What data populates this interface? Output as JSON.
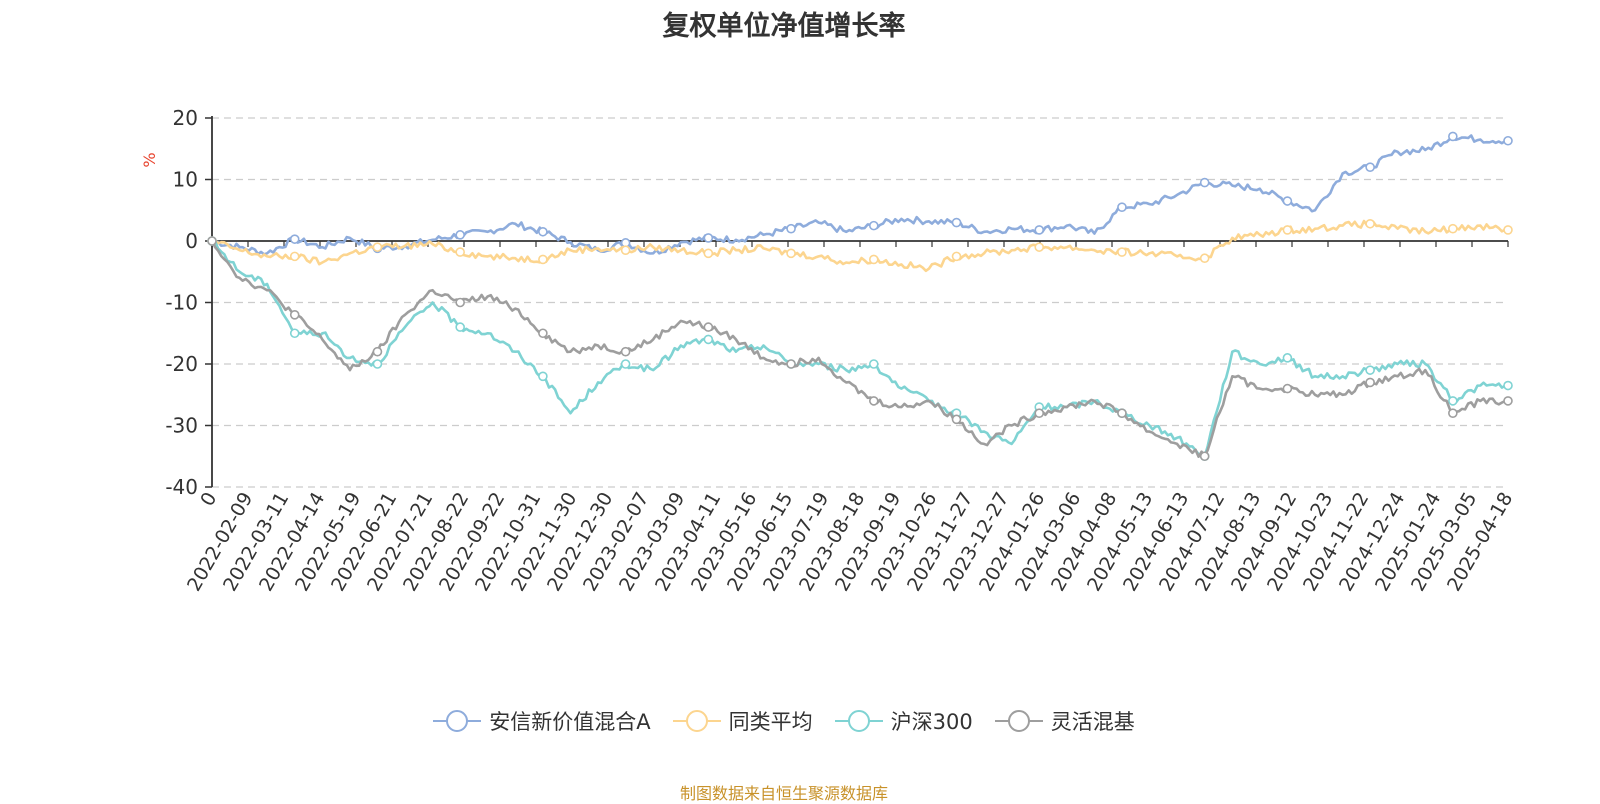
{
  "chart_data": {
    "type": "line",
    "title": "复权单位净值增长率",
    "ylabel": "%",
    "ylim": [
      -40,
      20
    ],
    "yticks": [
      -40,
      -30,
      -20,
      -10,
      0,
      10,
      20
    ],
    "grid": true,
    "legend_position": "bottom-center",
    "x_tick_labels": [
      "0",
      "2022-02-09",
      "2022-03-11",
      "2022-04-14",
      "2022-05-19",
      "2022-06-21",
      "2022-07-21",
      "2022-08-22",
      "2022-09-22",
      "2022-10-31",
      "2022-11-30",
      "2022-12-30",
      "2023-02-07",
      "2023-03-09",
      "2023-04-11",
      "2023-05-16",
      "2023-06-15",
      "2023-07-19",
      "2023-08-18",
      "2023-09-19",
      "2023-10-26",
      "2023-11-27",
      "2023-12-27",
      "2024-01-26",
      "2024-03-06",
      "2024-04-08",
      "2024-05-13",
      "2024-06-13",
      "2024-07-12",
      "2024-08-13",
      "2024-09-12",
      "2024-10-23",
      "2024-11-22",
      "2024-12-24",
      "2025-01-24",
      "2025-03-05",
      "2025-04-18"
    ],
    "series": [
      {
        "name": "安信新价值混合A",
        "color": "#8eacdc",
        "values": [
          0,
          -1,
          -2,
          0.3,
          -1,
          0.5,
          -1.2,
          -0.8,
          0.2,
          1,
          1.5,
          2.8,
          1.5,
          -0.2,
          -1.5,
          -0.3,
          -2,
          -0.2,
          0.5,
          0.2,
          1,
          2,
          3,
          1.5,
          2.5,
          3.6,
          3.2,
          3,
          1.5,
          2,
          1.8,
          2.5,
          1.2,
          5.5,
          6,
          7.5,
          9.5,
          9,
          8.5,
          6.5,
          5,
          11,
          12,
          14.5,
          14.8,
          17,
          16.5,
          16.3
        ]
      },
      {
        "name": "同类平均",
        "color": "#fcd58f",
        "values": [
          0,
          -1.5,
          -2.5,
          -2.5,
          -3.5,
          -2,
          -1,
          -0.8,
          -0.5,
          -1.8,
          -2.5,
          -2.8,
          -3,
          -1.5,
          -1.2,
          -1.5,
          -1,
          -1.5,
          -2,
          -1.5,
          -1.2,
          -2,
          -2.5,
          -3.5,
          -3,
          -3.8,
          -4.5,
          -2.5,
          -2,
          -1.5,
          -1,
          -1,
          -1.5,
          -1.8,
          -2,
          -2.5,
          -2.8,
          0.5,
          1,
          1.8,
          2,
          2.5,
          2.8,
          2,
          1.5,
          2,
          2.5,
          1.8
        ]
      },
      {
        "name": "沪深300",
        "color": "#7fd3d3",
        "values": [
          0,
          -5,
          -7,
          -15,
          -15,
          -19,
          -20,
          -14,
          -10,
          -14,
          -15,
          -18,
          -22,
          -28,
          -23,
          -20,
          -21,
          -17,
          -16,
          -18,
          -17,
          -20,
          -20,
          -21,
          -20,
          -24,
          -26,
          -28,
          -31,
          -33,
          -27,
          -27,
          -26,
          -28,
          -30,
          -32,
          -35,
          -18,
          -20,
          -19,
          -22,
          -22,
          -21,
          -20,
          -20,
          -26,
          -23.5,
          -23.5
        ]
      },
      {
        "name": "灵活混基",
        "color": "#9e9e9e",
        "values": [
          0,
          -6,
          -8,
          -12,
          -16,
          -21,
          -18,
          -12,
          -8,
          -10,
          -9,
          -11,
          -15,
          -18,
          -17,
          -18,
          -16,
          -13,
          -14,
          -16,
          -19,
          -20,
          -19,
          -23,
          -26,
          -27,
          -26,
          -29,
          -33,
          -30,
          -28,
          -27,
          -26,
          -28,
          -31,
          -33,
          -35,
          -22,
          -24,
          -24,
          -25,
          -25,
          -23,
          -22,
          -21,
          -28,
          -26,
          -26
        ]
      }
    ],
    "footnote": "制图数据来自恒生聚源数据库"
  }
}
